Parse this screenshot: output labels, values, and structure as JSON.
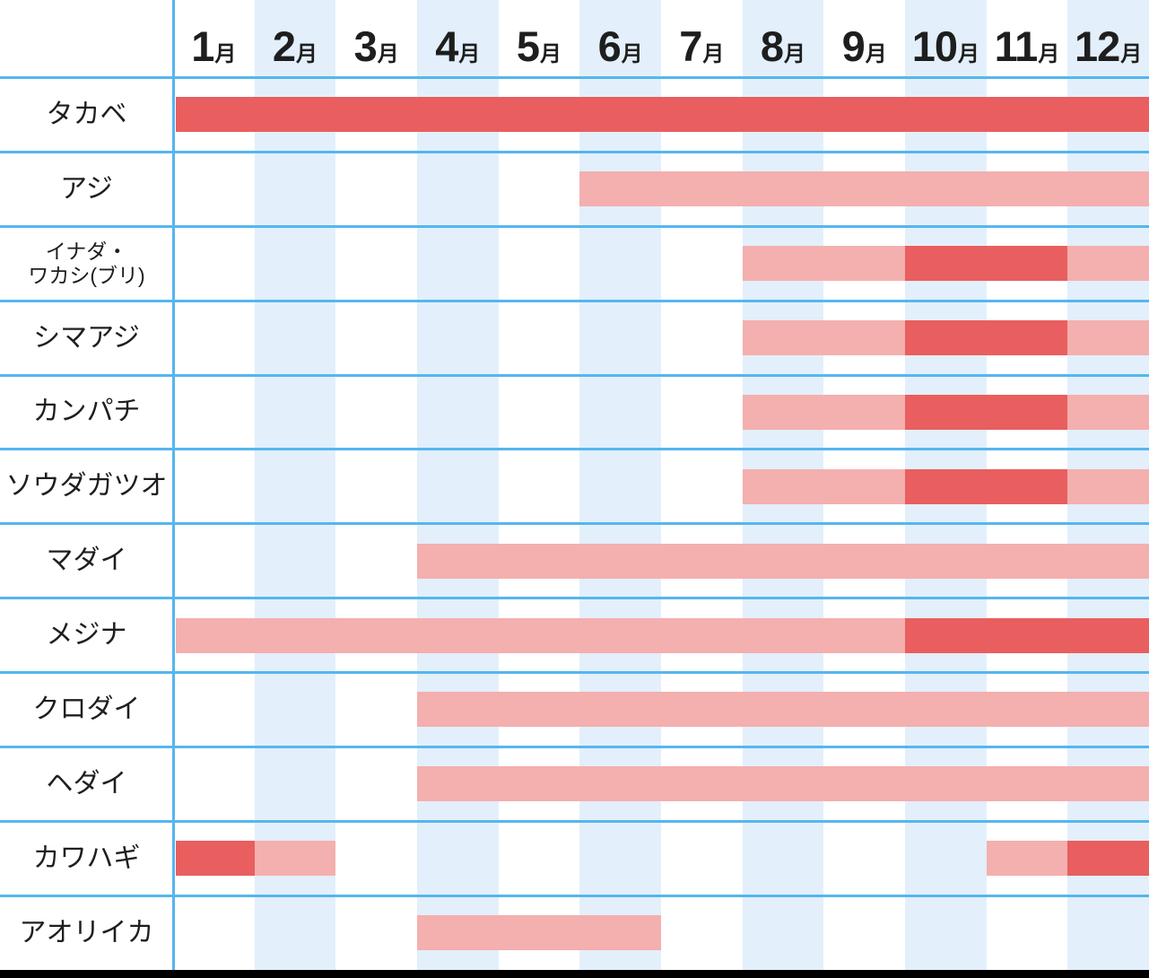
{
  "chart_data": {
    "type": "heatmap",
    "title": "",
    "x_categories": [
      "1月",
      "2月",
      "3月",
      "4月",
      "5月",
      "6月",
      "7月",
      "8月",
      "9月",
      "10月",
      "11月",
      "12月"
    ],
    "month_numbers": [
      "1",
      "2",
      "3",
      "4",
      "5",
      "6",
      "7",
      "8",
      "9",
      "10",
      "11",
      "12"
    ],
    "month_suffix": "月",
    "layout_hints": {
      "striped_columns": "even months have light-blue background",
      "bar_levels": "season = light pink, peak = strong red"
    },
    "rows": [
      {
        "label": "タカベ",
        "segments": [
          {
            "from": 1,
            "to": 12,
            "level": "peak"
          }
        ]
      },
      {
        "label": "アジ",
        "segments": [
          {
            "from": 6,
            "to": 12,
            "level": "season"
          }
        ]
      },
      {
        "label": "イナダ・ワカシ(ブリ)",
        "label_lines": [
          "イナダ・",
          "ワカシ(ブリ)"
        ],
        "segments": [
          {
            "from": 8,
            "to": 9,
            "level": "season"
          },
          {
            "from": 10,
            "to": 11,
            "level": "peak"
          },
          {
            "from": 12,
            "to": 12,
            "level": "season"
          }
        ]
      },
      {
        "label": "シマアジ",
        "segments": [
          {
            "from": 8,
            "to": 9,
            "level": "season"
          },
          {
            "from": 10,
            "to": 11,
            "level": "peak"
          },
          {
            "from": 12,
            "to": 12,
            "level": "season"
          }
        ]
      },
      {
        "label": "カンパチ",
        "segments": [
          {
            "from": 8,
            "to": 9,
            "level": "season"
          },
          {
            "from": 10,
            "to": 11,
            "level": "peak"
          },
          {
            "from": 12,
            "to": 12,
            "level": "season"
          }
        ]
      },
      {
        "label": "ソウダガツオ",
        "segments": [
          {
            "from": 8,
            "to": 9,
            "level": "season"
          },
          {
            "from": 10,
            "to": 11,
            "level": "peak"
          },
          {
            "from": 12,
            "to": 12,
            "level": "season"
          }
        ]
      },
      {
        "label": "マダイ",
        "segments": [
          {
            "from": 4,
            "to": 12,
            "level": "season"
          }
        ]
      },
      {
        "label": "メジナ",
        "segments": [
          {
            "from": 1,
            "to": 9,
            "level": "season"
          },
          {
            "from": 10,
            "to": 12,
            "level": "peak"
          }
        ]
      },
      {
        "label": "クロダイ",
        "segments": [
          {
            "from": 4,
            "to": 12,
            "level": "season"
          }
        ]
      },
      {
        "label": "ヘダイ",
        "segments": [
          {
            "from": 4,
            "to": 12,
            "level": "season"
          }
        ]
      },
      {
        "label": "カワハギ",
        "segments": [
          {
            "from": 1,
            "to": 1,
            "level": "peak"
          },
          {
            "from": 2,
            "to": 2,
            "level": "season"
          },
          {
            "from": 11,
            "to": 11,
            "level": "season"
          },
          {
            "from": 12,
            "to": 12,
            "level": "peak"
          }
        ]
      },
      {
        "label": "アオリイカ",
        "segments": [
          {
            "from": 4,
            "to": 6,
            "level": "season"
          }
        ]
      }
    ]
  },
  "colors": {
    "peak": "#e95e5e",
    "season": "#f4afaf",
    "column_stripe": "#e3effb",
    "grid_line": "#55b6ee",
    "footer": "#000000",
    "text": "#1e1e1e",
    "background": "#ffffff"
  }
}
